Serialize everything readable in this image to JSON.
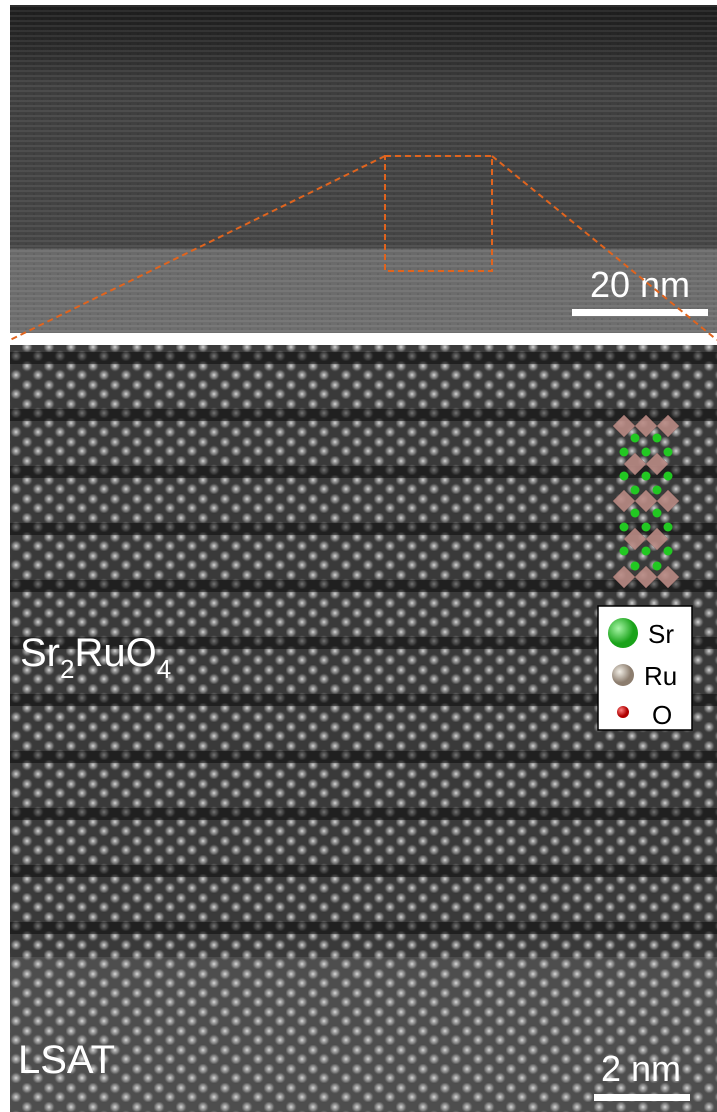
{
  "top_panel": {
    "scale_bar": "20 nm"
  },
  "bottom_panel": {
    "scale_bar": "2 nm",
    "film_label": [
      "Sr",
      "2",
      "RuO",
      "4"
    ],
    "substrate_label": "LSAT",
    "legend": [
      {
        "label": "Sr"
      },
      {
        "label": "Ru"
      },
      {
        "label": "O"
      }
    ]
  }
}
